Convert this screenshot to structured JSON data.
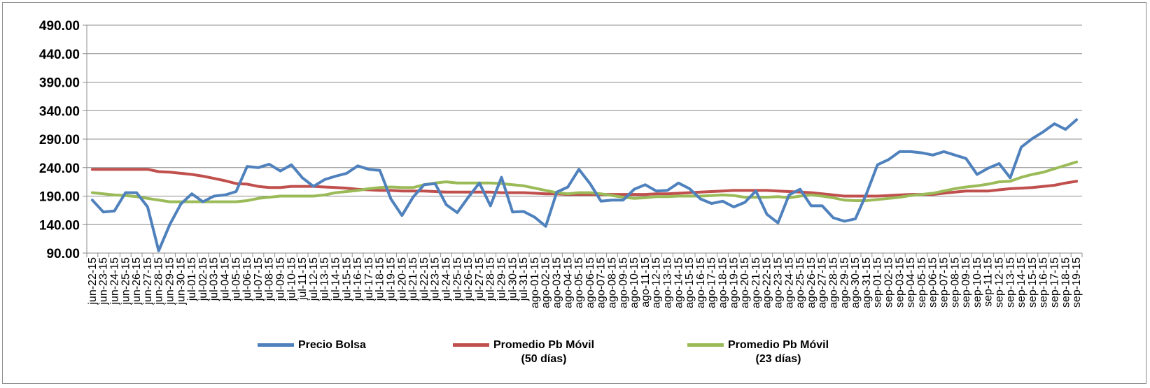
{
  "chart_data": {
    "type": "line",
    "title": "",
    "xlabel": "",
    "ylabel": "",
    "ylim": [
      90,
      490
    ],
    "yticks": [
      "90.00",
      "140.00",
      "190.00",
      "240.00",
      "290.00",
      "340.00",
      "390.00",
      "440.00",
      "490.00"
    ],
    "grid": true,
    "legend_position": "bottom",
    "categories": [
      "jun-22-15",
      "jun-23-15",
      "jun-24-15",
      "jun-25-15",
      "jun-26-15",
      "jun-27-15",
      "jun-28-15",
      "jun-29-15",
      "jun-30-15",
      "jul-01-15",
      "jul-02-15",
      "jul-03-15",
      "jul-04-15",
      "jul-05-15",
      "jul-06-15",
      "jul-07-15",
      "jul-08-15",
      "jul-09-15",
      "jul-10-15",
      "jul-11-15",
      "jul-12-15",
      "jul-13-15",
      "jul-14-15",
      "jul-15-15",
      "jul-16-15",
      "jul-17-15",
      "jul-18-15",
      "jul-19-15",
      "jul-20-15",
      "jul-21-15",
      "jul-22-15",
      "jul-23-15",
      "jul-24-15",
      "jul-25-15",
      "jul-26-15",
      "jul-27-15",
      "jul-28-15",
      "jul-29-15",
      "jul-30-15",
      "jul-31-15",
      "ago-01-15",
      "ago-02-15",
      "ago-03-15",
      "ago-04-15",
      "ago-05-15",
      "ago-06-15",
      "ago-07-15",
      "ago-08-15",
      "ago-09-15",
      "ago-10-15",
      "ago-11-15",
      "ago-12-15",
      "ago-13-15",
      "ago-14-15",
      "ago-15-15",
      "ago-16-15",
      "ago-17-15",
      "ago-18-15",
      "ago-19-15",
      "ago-20-15",
      "ago-21-15",
      "ago-22-15",
      "ago-23-15",
      "ago-24-15",
      "ago-25-15",
      "ago-26-15",
      "ago-27-15",
      "ago-28-15",
      "ago-29-15",
      "ago-30-15",
      "ago-31-15",
      "sep-01-15",
      "sep-02-15",
      "sep-03-15",
      "sep-04-15",
      "sep-05-15",
      "sep-06-15",
      "sep-07-15",
      "sep-08-15",
      "sep-09-15",
      "sep-10-15",
      "sep-11-15",
      "sep-12-15",
      "sep-13-15",
      "sep-14-15",
      "sep-15-15",
      "sep-16-15",
      "sep-17-15",
      "sep-18-15",
      "sep-19-15"
    ],
    "series": [
      {
        "name": "Precio Bolsa",
        "color": "#4f81bd",
        "values": [
          183,
          162,
          164,
          196,
          196,
          171,
          94,
          140,
          176,
          194,
          180,
          190,
          192,
          198,
          242,
          240,
          246,
          234,
          245,
          222,
          207,
          219,
          225,
          230,
          243,
          237,
          235,
          185,
          156,
          188,
          210,
          212,
          175,
          161,
          188,
          213,
          173,
          223,
          162,
          163,
          153,
          137,
          197,
          206,
          237,
          212,
          181,
          183,
          183,
          202,
          210,
          199,
          200,
          213,
          203,
          185,
          177,
          181,
          171,
          179,
          199,
          158,
          143,
          192,
          202,
          173,
          173,
          152,
          146,
          150,
          194,
          245,
          254,
          268,
          268,
          266,
          262,
          268,
          262,
          256,
          228,
          239,
          247,
          222,
          276,
          291,
          303,
          317,
          307,
          324
        ]
      },
      {
        "name": "Promedio Pb Móvil (50 días)",
        "color": "#c0504d",
        "values": [
          237,
          237,
          237,
          237,
          237,
          237,
          233,
          232,
          230,
          228,
          225,
          221,
          217,
          212,
          211,
          207,
          205,
          205,
          207,
          207,
          207,
          206,
          205,
          204,
          202,
          201,
          200,
          200,
          199,
          199,
          199,
          198,
          197,
          197,
          197,
          197,
          197,
          196,
          196,
          196,
          195,
          194,
          194,
          193,
          193,
          193,
          193,
          193,
          193,
          193,
          193,
          194,
          194,
          195,
          196,
          197,
          198,
          199,
          200,
          200,
          200,
          200,
          199,
          198,
          197,
          196,
          194,
          192,
          190,
          190,
          190,
          190,
          191,
          192,
          193,
          193,
          193,
          195,
          197,
          199,
          199,
          199,
          201,
          203,
          204,
          205,
          207,
          209,
          213,
          216
        ]
      },
      {
        "name": "Promedio Pb Móvil (23 días)",
        "color": "#9bbb59",
        "values": [
          196,
          194,
          192,
          191,
          189,
          186,
          183,
          180,
          180,
          180,
          180,
          180,
          180,
          180,
          182,
          186,
          188,
          190,
          190,
          190,
          190,
          192,
          196,
          198,
          200,
          203,
          205,
          206,
          205,
          205,
          210,
          213,
          215,
          213,
          213,
          213,
          213,
          212,
          210,
          208,
          204,
          200,
          196,
          194,
          196,
          196,
          194,
          191,
          188,
          186,
          187,
          189,
          189,
          190,
          190,
          190,
          191,
          192,
          191,
          188,
          188,
          188,
          189,
          187,
          190,
          192,
          190,
          187,
          183,
          182,
          182,
          184,
          186,
          188,
          191,
          193,
          195,
          199,
          203,
          206,
          208,
          211,
          215,
          216,
          223,
          228,
          232,
          238,
          244,
          250
        ]
      }
    ]
  },
  "legend": {
    "items": [
      {
        "line1": "Precio Bolsa",
        "line2": "",
        "color": "#4f81bd"
      },
      {
        "line1": "Promedio Pb Móvil",
        "line2": "(50 días)",
        "color": "#c0504d"
      },
      {
        "line1": "Promedio Pb Móvil",
        "line2": "(23 días)",
        "color": "#9bbb59"
      }
    ]
  },
  "style": {
    "gridline_color": "#8c8c8c",
    "axis_color": "#8c8c8c"
  }
}
